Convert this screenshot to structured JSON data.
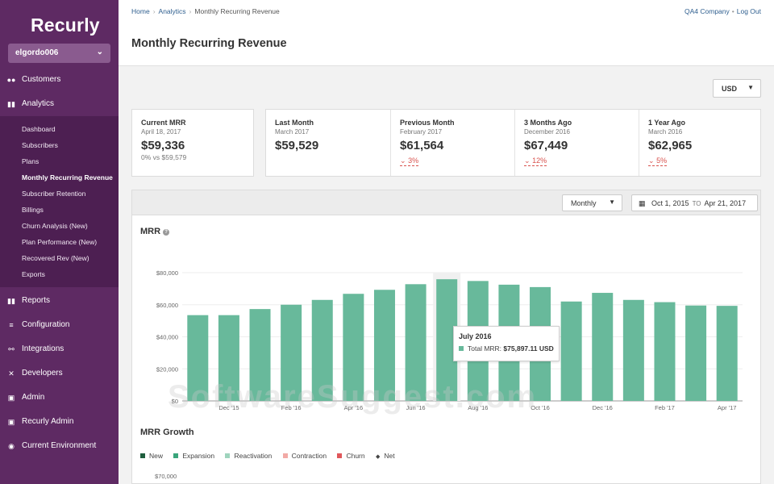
{
  "app": {
    "name": "Recurly",
    "account": "elgordo006"
  },
  "breadcrumb": [
    "Home",
    "Analytics",
    "Monthly Recurring Revenue"
  ],
  "top_links": {
    "company": "QA4 Company",
    "logout": "Log Out"
  },
  "page_title": "Monthly Recurring Revenue",
  "currency": "USD",
  "sidebar": {
    "items": [
      {
        "label": "Customers",
        "icon": "users-icon"
      },
      {
        "label": "Analytics",
        "icon": "bar-chart-icon"
      },
      {
        "label": "Reports",
        "icon": "bar-chart-icon"
      },
      {
        "label": "Configuration",
        "icon": "sliders-icon"
      },
      {
        "label": "Integrations",
        "icon": "plug-icon"
      },
      {
        "label": "Developers",
        "icon": "tools-icon"
      },
      {
        "label": "Admin",
        "icon": "lock-icon"
      },
      {
        "label": "Recurly Admin",
        "icon": "lock-icon"
      },
      {
        "label": "Current Environment",
        "icon": "globe-icon"
      }
    ],
    "analytics_sub": [
      "Dashboard",
      "Subscribers",
      "Plans",
      "Monthly Recurring Revenue",
      "Subscriber Retention",
      "Billings",
      "Churn Analysis (New)",
      "Plan Performance (New)",
      "Recovered Rev (New)",
      "Exports"
    ]
  },
  "current_mrr": {
    "label": "Current MRR",
    "date": "April 18, 2017",
    "value": "$59,336",
    "change": "0%",
    "vs": "vs $59,579"
  },
  "comparisons": [
    {
      "label": "Last Month",
      "date": "March 2017",
      "value": "$59,529",
      "change": ""
    },
    {
      "label": "Previous Month",
      "date": "February 2017",
      "value": "$61,564",
      "change": "3%"
    },
    {
      "label": "3 Months Ago",
      "date": "December 2016",
      "value": "$67,449",
      "change": "12%"
    },
    {
      "label": "1 Year Ago",
      "date": "March 2016",
      "value": "$62,965",
      "change": "5%"
    }
  ],
  "controls": {
    "period": "Monthly",
    "date_from": "Oct 1, 2015",
    "date_to_label": "TO",
    "date_to": "Apr 21, 2017"
  },
  "mrr_section": {
    "title": "MRR"
  },
  "tooltip": {
    "title": "July 2016",
    "label": "Total MRR:",
    "value": "$75,897.11 USD"
  },
  "growth_section": {
    "title": "MRR Growth",
    "legend": [
      {
        "label": "New",
        "color": "#1f5e3e"
      },
      {
        "label": "Expansion",
        "color": "#3aa57b"
      },
      {
        "label": "Reactivation",
        "color": "#9fd4bd"
      },
      {
        "label": "Contraction",
        "color": "#f2aaa6"
      },
      {
        "label": "Churn",
        "color": "#e0575b"
      },
      {
        "label": "Net",
        "color": "#333333"
      }
    ],
    "first_tick": "$70,000"
  },
  "watermark": "SoftwareSuggest.com",
  "chart_data": {
    "type": "bar",
    "title": "MRR",
    "categories": [
      "Nov '15",
      "Dec '15",
      "Jan '16",
      "Feb '16",
      "Mar '16",
      "Apr '16",
      "May '16",
      "Jun '16",
      "Jul '16",
      "Aug '16",
      "Sep '16",
      "Oct '16",
      "Nov '16",
      "Dec '16",
      "Jan '17",
      "Feb '17",
      "Mar '17",
      "Apr '17"
    ],
    "tick_labels": [
      "Dec '15",
      "Feb '16",
      "Apr '16",
      "Jun '16",
      "Aug '16",
      "Oct '16",
      "Dec '16",
      "Feb '17",
      "Apr '17"
    ],
    "values": [
      53500,
      53500,
      57300,
      60000,
      63000,
      66800,
      69300,
      72800,
      75897,
      74800,
      72500,
      71000,
      62000,
      67400,
      63000,
      61600,
      59500,
      59300
    ],
    "y_ticks": [
      "$0",
      "$20,000",
      "$40,000",
      "$60,000",
      "$80,000"
    ],
    "ylim": [
      0,
      80000
    ],
    "highlighted_index": 8,
    "bar_color": "#68b99b",
    "xlabel": "",
    "ylabel": ""
  }
}
